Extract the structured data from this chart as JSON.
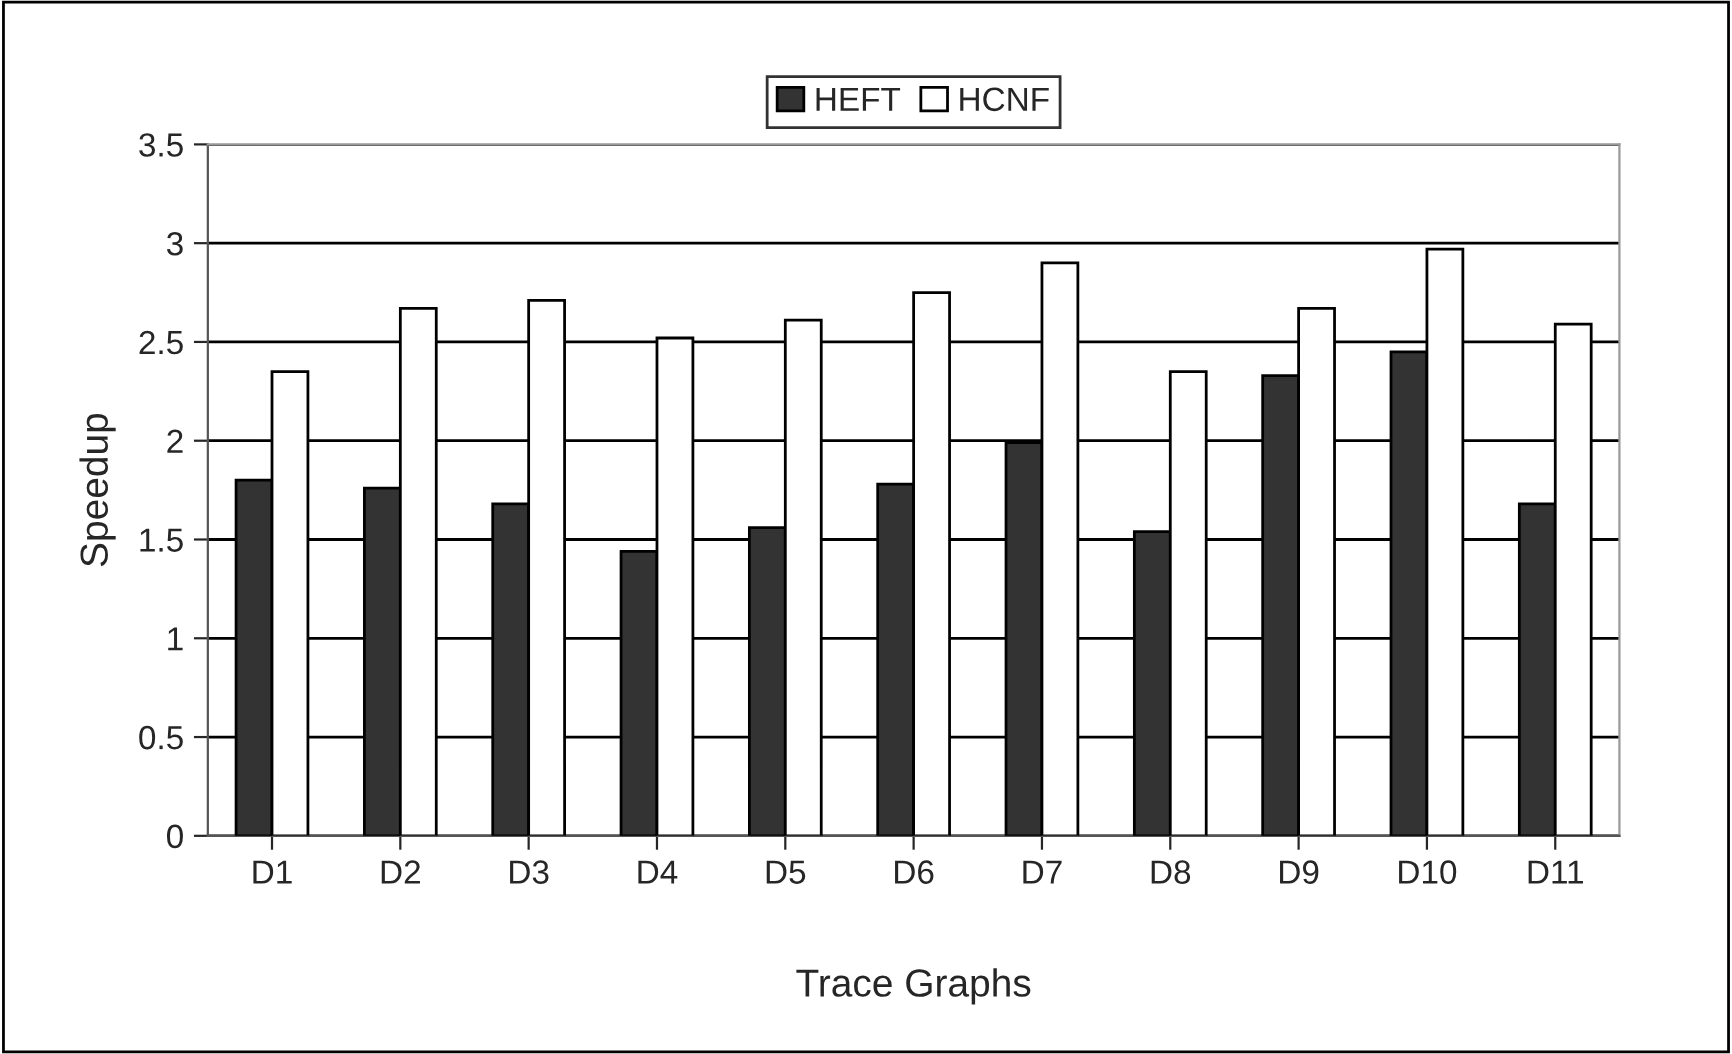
{
  "chart_data": {
    "type": "bar",
    "xlabel": "Trace Graphs",
    "ylabel": "Speedup",
    "categories": [
      "D1",
      "D2",
      "D3",
      "D4",
      "D5",
      "D6",
      "D7",
      "D8",
      "D9",
      "D10",
      "D11"
    ],
    "series": [
      {
        "name": "HEFT",
        "color": "#333333",
        "values": [
          1.8,
          1.76,
          1.68,
          1.44,
          1.56,
          1.78,
          1.99,
          1.54,
          2.33,
          2.45,
          1.68
        ]
      },
      {
        "name": "HCNF",
        "color": "#ffffff",
        "values": [
          2.35,
          2.67,
          2.71,
          2.52,
          2.61,
          2.75,
          2.9,
          2.35,
          2.67,
          2.97,
          2.59
        ]
      }
    ],
    "ylim": [
      0,
      3.5
    ],
    "yticks": [
      0,
      0.5,
      1,
      1.5,
      2,
      2.5,
      3,
      3.5
    ],
    "grid": "y",
    "legend": "top"
  }
}
